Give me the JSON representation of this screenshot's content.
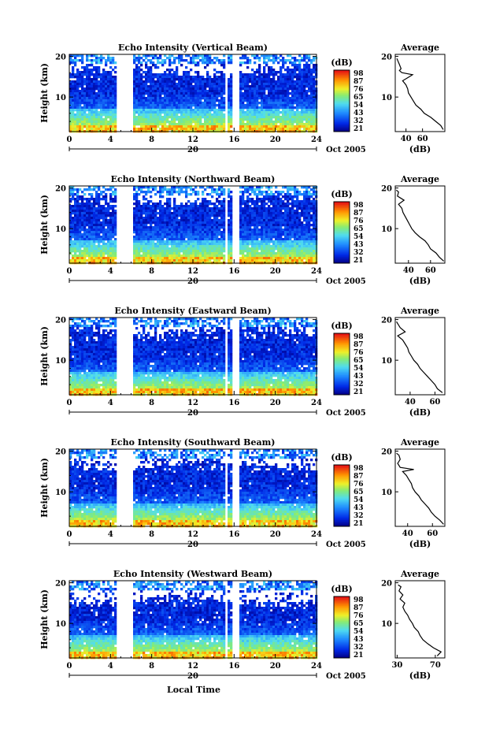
{
  "figure": {
    "xaxis_label": "Local Time",
    "date_label": "Oct 2005",
    "date_tick": "20",
    "ylabel": "Height (km)",
    "colorbar_unit": "(dB)",
    "colorbar_ticks": [
      "98",
      "87",
      "76",
      "65",
      "54",
      "43",
      "32",
      "21"
    ],
    "avg_title": "Average",
    "avg_xlabel": "(dB)"
  },
  "chart_data": [
    {
      "type": "heatmap",
      "title": "Echo Intensity (Vertical Beam)",
      "xlabel": "Local Time",
      "ylabel": "Height (km)",
      "x_ticks": [
        0,
        4,
        8,
        12,
        16,
        20,
        24
      ],
      "y_ticks": [
        10,
        20
      ],
      "xlim": [
        0,
        24
      ],
      "ylim": [
        1.5,
        20.5
      ],
      "data_gaps_hours": [
        [
          4.6,
          6.1
        ],
        [
          15.1,
          15.4
        ],
        [
          15.8,
          16.5
        ]
      ],
      "colorbar": {
        "unit": "(dB)",
        "ticks": [
          98,
          87,
          76,
          65,
          54,
          43,
          32,
          21
        ]
      },
      "average_profile": {
        "title": "Average",
        "xlabel": "(dB)",
        "x_ticks": [
          40,
          60
        ],
        "xlim": [
          27,
          87
        ],
        "height_km": [
          2,
          3,
          4,
          5,
          6,
          7,
          8,
          9,
          10,
          11,
          12,
          13,
          14,
          15,
          15.5,
          16,
          16.5,
          17,
          18,
          19,
          19.5
        ],
        "intensity_db": [
          85,
          82,
          76,
          70,
          62,
          58,
          52,
          49,
          46,
          43,
          42,
          40,
          36,
          44,
          48,
          35,
          32,
          34,
          32,
          30,
          29
        ]
      }
    },
    {
      "type": "heatmap",
      "title": "Echo Intensity (Northward Beam)",
      "xlabel": "Local Time",
      "ylabel": "Height (km)",
      "x_ticks": [
        0,
        4,
        8,
        12,
        16,
        20,
        24
      ],
      "y_ticks": [
        10,
        20
      ],
      "xlim": [
        0,
        24
      ],
      "ylim": [
        1.5,
        20.5
      ],
      "data_gaps_hours": [
        [
          4.6,
          6.1
        ],
        [
          15.1,
          15.4
        ],
        [
          15.8,
          16.5
        ]
      ],
      "colorbar": {
        "unit": "(dB)",
        "ticks": [
          98,
          87,
          76,
          65,
          54,
          43,
          32,
          21
        ]
      },
      "average_profile": {
        "title": "Average",
        "xlabel": "(dB)",
        "x_ticks": [
          40,
          60
        ],
        "xlim": [
          28,
          73
        ],
        "height_km": [
          2,
          3,
          4,
          5,
          6,
          7,
          8,
          9,
          10,
          11,
          12,
          13,
          14,
          15,
          16,
          17,
          18,
          19,
          19.5
        ],
        "intensity_db": [
          72,
          68,
          65,
          60,
          58,
          55,
          50,
          46,
          43,
          41,
          39,
          37,
          35,
          34,
          31,
          36,
          30,
          31,
          29
        ]
      }
    },
    {
      "type": "heatmap",
      "title": "Echo Intensity (Eastward Beam)",
      "xlabel": "Local Time",
      "ylabel": "Height (km)",
      "x_ticks": [
        0,
        4,
        8,
        12,
        16,
        20,
        24
      ],
      "y_ticks": [
        10,
        20
      ],
      "xlim": [
        0,
        24
      ],
      "ylim": [
        1.5,
        20.5
      ],
      "data_gaps_hours": [
        [
          4.6,
          6.1
        ],
        [
          15.1,
          15.4
        ],
        [
          15.8,
          16.5
        ]
      ],
      "colorbar": {
        "unit": "(dB)",
        "ticks": [
          98,
          87,
          76,
          65,
          54,
          43,
          32,
          21
        ]
      },
      "average_profile": {
        "title": "Average",
        "xlabel": "(dB)",
        "x_ticks": [
          40,
          60
        ],
        "xlim": [
          28,
          68
        ],
        "height_km": [
          2,
          3,
          4,
          5,
          6,
          7,
          8,
          9,
          10,
          11,
          12,
          13,
          14,
          15,
          16,
          17,
          18,
          19,
          19.5
        ],
        "intensity_db": [
          66,
          62,
          60,
          57,
          54,
          51,
          48,
          46,
          43,
          41,
          39,
          38,
          36,
          34,
          30,
          36,
          32,
          30,
          29
        ]
      }
    },
    {
      "type": "heatmap",
      "title": "Echo Intensity (Southward Beam)",
      "xlabel": "Local Time",
      "ylabel": "Height (km)",
      "x_ticks": [
        0,
        4,
        8,
        12,
        16,
        20,
        24
      ],
      "y_ticks": [
        10,
        20
      ],
      "xlim": [
        0,
        24
      ],
      "ylim": [
        1.5,
        20.5
      ],
      "data_gaps_hours": [
        [
          4.6,
          6.1
        ],
        [
          15.1,
          15.4
        ],
        [
          15.8,
          16.5
        ]
      ],
      "colorbar": {
        "unit": "(dB)",
        "ticks": [
          98,
          87,
          76,
          65,
          54,
          43,
          32,
          21
        ]
      },
      "average_profile": {
        "title": "Average",
        "xlabel": "(dB)",
        "x_ticks": [
          40,
          60
        ],
        "xlim": [
          30,
          70
        ],
        "height_km": [
          2,
          3,
          4,
          5,
          6,
          7,
          8,
          9,
          10,
          11,
          12,
          13,
          14,
          15,
          15.5,
          16,
          17,
          18,
          19,
          19.5
        ],
        "intensity_db": [
          69,
          66,
          62,
          59,
          57,
          54,
          51,
          49,
          46,
          44,
          43,
          41,
          39,
          36,
          45,
          34,
          32,
          34,
          33,
          31
        ]
      }
    },
    {
      "type": "heatmap",
      "title": "Echo Intensity (Westward Beam)",
      "xlabel": "Local Time",
      "ylabel": "Height (km)",
      "x_ticks": [
        0,
        4,
        8,
        12,
        16,
        20,
        24
      ],
      "y_ticks": [
        10,
        20
      ],
      "xlim": [
        0,
        24
      ],
      "ylim": [
        1.5,
        20.5
      ],
      "data_gaps_hours": [
        [
          4.6,
          6.1
        ],
        [
          15.1,
          15.4
        ],
        [
          15.8,
          16.5
        ]
      ],
      "colorbar": {
        "unit": "(dB)",
        "ticks": [
          98,
          87,
          76,
          65,
          54,
          43,
          32,
          21
        ]
      },
      "average_profile": {
        "title": "Average",
        "xlabel": "(dB)",
        "x_ticks": [
          30,
          70
        ],
        "xlim": [
          28,
          80
        ],
        "height_km": [
          2,
          3,
          4,
          5,
          6,
          7,
          8,
          9,
          10,
          11,
          12,
          13,
          14,
          15,
          16,
          17,
          18,
          19,
          19.5
        ],
        "intensity_db": [
          72,
          76,
          68,
          62,
          57,
          54,
          52,
          48,
          46,
          43,
          41,
          38,
          36,
          38,
          33,
          36,
          32,
          34,
          31
        ]
      }
    }
  ]
}
